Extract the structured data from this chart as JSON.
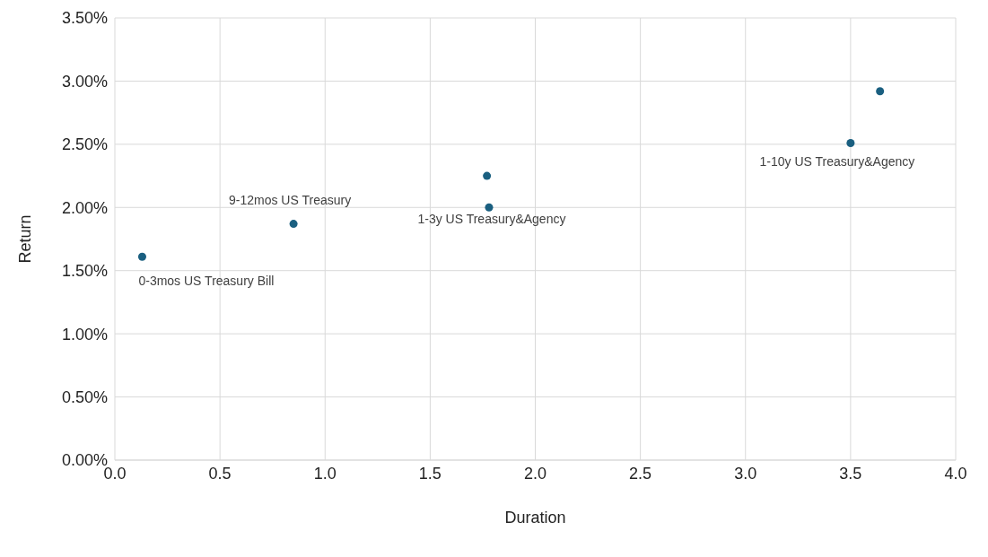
{
  "chart_data": {
    "type": "scatter",
    "xlabel": "Duration",
    "ylabel": "Return",
    "x": [
      0.13,
      0.85,
      1.77,
      1.78,
      3.5,
      3.64
    ],
    "values": [
      1.61,
      1.87,
      2.25,
      2.0,
      2.51,
      2.92
    ],
    "color": "#1a5f80",
    "marker": "circle",
    "grid": true,
    "xlim": [
      0,
      4
    ],
    "xticks": [
      {
        "value": 0,
        "label": "0.0"
      },
      {
        "value": 0.5,
        "label": "0.5"
      },
      {
        "value": 1,
        "label": "1.0"
      },
      {
        "value": 1.5,
        "label": "1.5"
      },
      {
        "value": 2,
        "label": "2.0"
      },
      {
        "value": 2.5,
        "label": "2.5"
      },
      {
        "value": 3,
        "label": "3.0"
      },
      {
        "value": 3.5,
        "label": "3.5"
      },
      {
        "value": 4,
        "label": "4.0"
      }
    ],
    "ylim": [
      0,
      3.5
    ],
    "yticks": [
      {
        "value": 0,
        "label": "0.00%"
      },
      {
        "value": 0.5,
        "label": "0.50%"
      },
      {
        "value": 1,
        "label": "1.00%"
      },
      {
        "value": 1.5,
        "label": "1.50%"
      },
      {
        "value": 2,
        "label": "2.00%"
      },
      {
        "value": 2.5,
        "label": "2.50%"
      },
      {
        "value": 3,
        "label": "3.00%"
      },
      {
        "value": 3.5,
        "label": "3.50%"
      }
    ],
    "annotations": [
      {
        "text": "0-3mos US Treasury Bill",
        "x": 0.13,
        "y": 1.61
      },
      {
        "text": "9-12mos US Treasury",
        "x": 0.85,
        "y": 1.87
      },
      {
        "text": "1-3y US Treasury&Agency",
        "x": 1.78,
        "y": 2.0
      },
      {
        "text": "1-10y US Treasury&Agency",
        "x": 3.5,
        "y": 2.51
      }
    ]
  }
}
